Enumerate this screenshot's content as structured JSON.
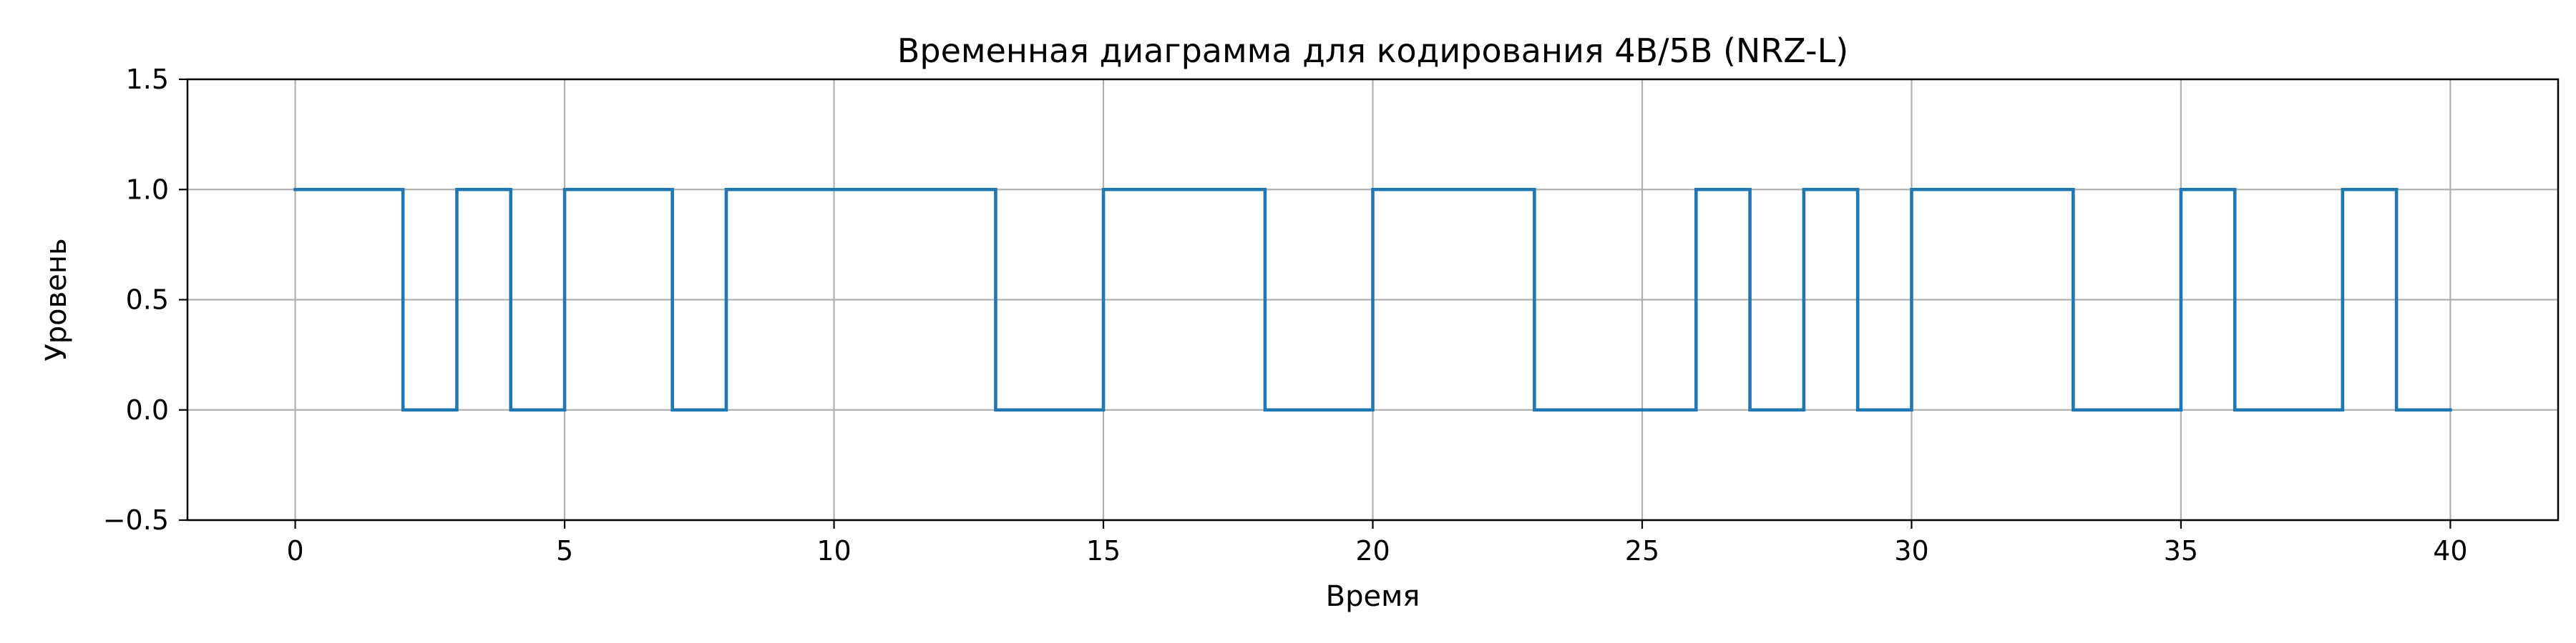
{
  "chart_data": {
    "type": "line",
    "title": "Временная диаграмма для кодирования 4B/5B (NRZ-L)",
    "xlabel": "Время",
    "ylabel": "Уровень",
    "xlim": [
      -2,
      42
    ],
    "ylim": [
      -0.5,
      1.5
    ],
    "x_ticks": [
      0,
      5,
      10,
      15,
      20,
      25,
      30,
      35,
      40
    ],
    "x_tick_labels": [
      "0",
      "5",
      "10",
      "15",
      "20",
      "25",
      "30",
      "35",
      "40"
    ],
    "y_ticks": [
      -0.5,
      0.0,
      0.5,
      1.0,
      1.5
    ],
    "y_tick_labels": [
      "−0.5",
      "0.0",
      "0.5",
      "1.0",
      "1.5"
    ],
    "grid": true,
    "step": "post",
    "series": [
      {
        "color": "#1f77b4",
        "x": [
          0,
          1,
          2,
          3,
          4,
          5,
          6,
          7,
          8,
          9,
          10,
          11,
          12,
          13,
          14,
          15,
          16,
          17,
          18,
          19,
          20,
          21,
          22,
          23,
          24,
          25,
          26,
          27,
          28,
          29,
          30,
          31,
          32,
          33,
          34,
          35,
          36,
          37,
          38,
          39,
          40
        ],
        "values": [
          1,
          1,
          0,
          1,
          0,
          1,
          1,
          0,
          1,
          1,
          1,
          1,
          1,
          0,
          0,
          1,
          1,
          1,
          0,
          0,
          1,
          1,
          1,
          0,
          0,
          0,
          1,
          0,
          1,
          0,
          1,
          1,
          1,
          0,
          0,
          1,
          0,
          0,
          1,
          0,
          0
        ]
      }
    ]
  }
}
